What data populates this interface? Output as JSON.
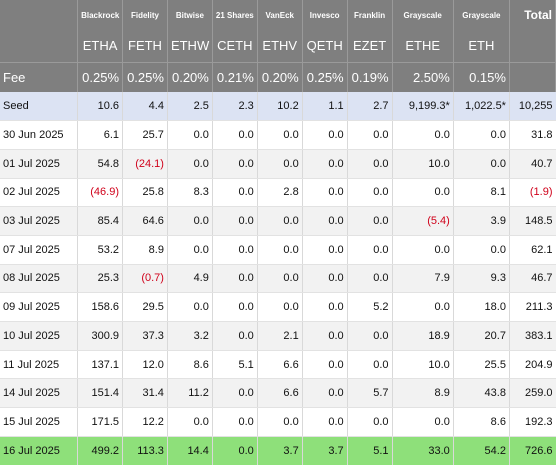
{
  "issuers": [
    "Blackrock",
    "Fidelity",
    "Bitwise",
    "21 Shares",
    "VanEck",
    "Invesco",
    "Franklin",
    "Grayscale",
    "Grayscale"
  ],
  "total_label": "Total",
  "tickers": [
    "ETHA",
    "FETH",
    "ETHW",
    "CETH",
    "ETHV",
    "QETH",
    "EZET",
    "ETHE",
    "ETH"
  ],
  "fee_label": "Fee",
  "fees": [
    "0.25%",
    "0.25%",
    "0.20%",
    "0.21%",
    "0.20%",
    "0.25%",
    "0.19%",
    "2.50%",
    "0.15%"
  ],
  "rows": [
    {
      "date": "Seed",
      "values": [
        "10.6",
        "4.4",
        "2.5",
        "2.3",
        "10.2",
        "1.1",
        "2.7",
        "9,199.3*",
        "1,022.5*"
      ],
      "total": "10,255"
    },
    {
      "date": "30 Jun 2025",
      "values": [
        "6.1",
        "25.7",
        "0.0",
        "0.0",
        "0.0",
        "0.0",
        "0.0",
        "0.0",
        "0.0"
      ],
      "total": "31.8"
    },
    {
      "date": "01 Jul 2025",
      "values": [
        "54.8",
        "(24.1)",
        "0.0",
        "0.0",
        "0.0",
        "0.0",
        "0.0",
        "10.0",
        "0.0"
      ],
      "total": "40.7"
    },
    {
      "date": "02 Jul 2025",
      "values": [
        "(46.9)",
        "25.8",
        "8.3",
        "0.0",
        "2.8",
        "0.0",
        "0.0",
        "0.0",
        "8.1"
      ],
      "total": "(1.9)"
    },
    {
      "date": "03 Jul 2025",
      "values": [
        "85.4",
        "64.6",
        "0.0",
        "0.0",
        "0.0",
        "0.0",
        "0.0",
        "(5.4)",
        "3.9"
      ],
      "total": "148.5"
    },
    {
      "date": "07 Jul 2025",
      "values": [
        "53.2",
        "8.9",
        "0.0",
        "0.0",
        "0.0",
        "0.0",
        "0.0",
        "0.0",
        "0.0"
      ],
      "total": "62.1"
    },
    {
      "date": "08 Jul 2025",
      "values": [
        "25.3",
        "(0.7)",
        "4.9",
        "0.0",
        "0.0",
        "0.0",
        "0.0",
        "7.9",
        "9.3"
      ],
      "total": "46.7"
    },
    {
      "date": "09 Jul 2025",
      "values": [
        "158.6",
        "29.5",
        "0.0",
        "0.0",
        "0.0",
        "0.0",
        "5.2",
        "0.0",
        "18.0"
      ],
      "total": "211.3"
    },
    {
      "date": "10 Jul 2025",
      "values": [
        "300.9",
        "37.3",
        "3.2",
        "0.0",
        "2.1",
        "0.0",
        "0.0",
        "18.9",
        "20.7"
      ],
      "total": "383.1"
    },
    {
      "date": "11 Jul 2025",
      "values": [
        "137.1",
        "12.0",
        "8.6",
        "5.1",
        "6.6",
        "0.0",
        "0.0",
        "10.0",
        "25.5"
      ],
      "total": "204.9"
    },
    {
      "date": "14 Jul 2025",
      "values": [
        "151.4",
        "31.4",
        "11.2",
        "0.0",
        "6.6",
        "0.0",
        "5.7",
        "8.9",
        "43.8"
      ],
      "total": "259.0"
    },
    {
      "date": "15 Jul 2025",
      "values": [
        "171.5",
        "12.2",
        "0.0",
        "0.0",
        "0.0",
        "0.0",
        "0.0",
        "0.0",
        "8.6"
      ],
      "total": "192.3"
    },
    {
      "date": "16 Jul 2025",
      "values": [
        "499.2",
        "113.3",
        "14.4",
        "0.0",
        "3.7",
        "3.7",
        "5.1",
        "33.0",
        "54.2"
      ],
      "total": "726.6"
    }
  ],
  "colors": {
    "header_bg": "#7f7f7f",
    "seed_row_bg": "#dce3f3",
    "alt_row_bg": "#f2f2f2",
    "latest_row_bg": "#8ee07a",
    "negative_text": "#d0021b"
  }
}
